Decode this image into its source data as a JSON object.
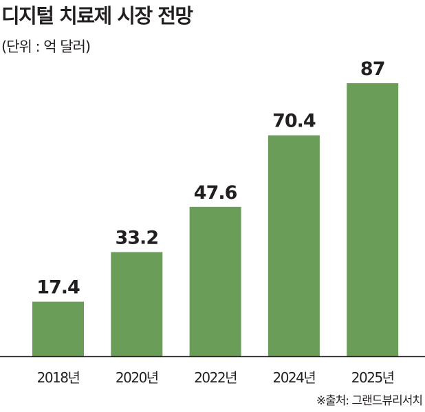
{
  "chart_data": {
    "type": "bar",
    "title": "디지털 치료제 시장 전망",
    "subtitle": "(단위 : 억 달러)",
    "categories": [
      "2018년",
      "2020년",
      "2022년",
      "2024년",
      "2025년"
    ],
    "values": [
      17.4,
      33.2,
      47.6,
      70.4,
      87
    ],
    "value_labels": [
      "17.4",
      "33.2",
      "47.6",
      "70.4",
      "87"
    ],
    "xlabel": "",
    "ylabel": "억 달러",
    "ylim": [
      0,
      87
    ],
    "grid": false,
    "bar_color": "#6a9e58",
    "source": "※출처: 그랜드뷰리서치"
  }
}
